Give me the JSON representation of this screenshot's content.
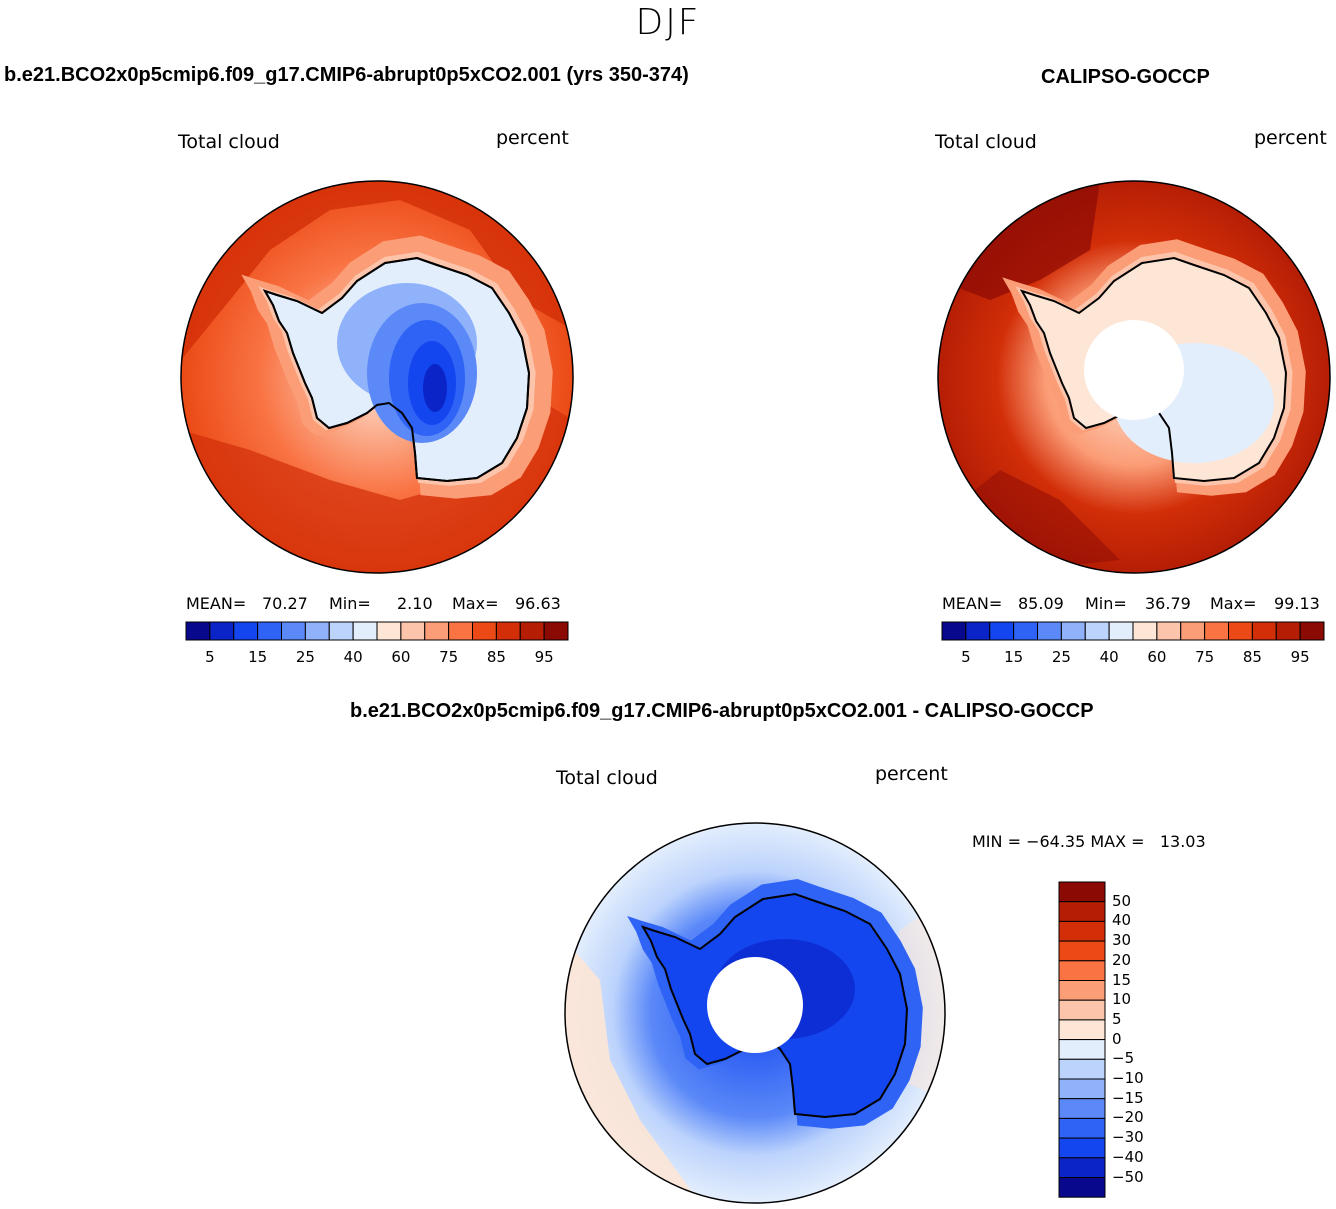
{
  "figure": {
    "season": "DJF"
  },
  "panels": [
    {
      "id": "model",
      "title": "b.e21.BCO2x0p5cmip6.f09_g17.CMIP6-abrupt0p5xCO2.001 (yrs 350-374)",
      "variable": "Total cloud",
      "units": "percent",
      "stats": {
        "mean_label": "MEAN=",
        "mean": "70.27",
        "min_label": "Min=",
        "min": "2.10",
        "max_label": "Max=",
        "max": "96.63"
      },
      "colorbar_ticks": [
        "5",
        "15",
        "25",
        "40",
        "60",
        "75",
        "85",
        "95"
      ]
    },
    {
      "id": "obs",
      "title": "CALIPSO-GOCCP",
      "variable": "Total cloud",
      "units": "percent",
      "stats": {
        "mean_label": "MEAN=",
        "mean": "85.09",
        "min_label": "Min=",
        "min": "36.79",
        "max_label": "Max=",
        "max": "99.13"
      },
      "colorbar_ticks": [
        "5",
        "15",
        "25",
        "40",
        "60",
        "75",
        "85",
        "95"
      ]
    },
    {
      "id": "diff",
      "title": "b.e21.BCO2x0p5cmip6.f09_g17.CMIP6-abrupt0p5xCO2.001 - CALIPSO-GOCCP",
      "variable": "Total cloud",
      "units": "percent",
      "stats_text": "MIN = −64.35 MAX =   13.03",
      "colorbar_ticks": [
        "50",
        "40",
        "30",
        "20",
        "15",
        "10",
        "5",
        "0",
        "−5",
        "−10",
        "−15",
        "−20",
        "−30",
        "−40",
        "−50"
      ]
    }
  ],
  "colors": {
    "abs_scale": [
      "#08088c",
      "#0a24c8",
      "#1446f0",
      "#2f63f5",
      "#5b89f8",
      "#8fb2fb",
      "#bcd3fc",
      "#e3eefd",
      "#fde6d6",
      "#fcc5ab",
      "#fb9d77",
      "#f97343",
      "#eb4a16",
      "#d22e08",
      "#b51e05",
      "#8c0a04"
    ],
    "diff_scale": [
      "#8c0a04",
      "#b51e05",
      "#d22e08",
      "#eb4a16",
      "#f97343",
      "#fb9d77",
      "#fcc5ab",
      "#fde6d6",
      "#e3eefd",
      "#bcd3fc",
      "#8fb2fb",
      "#5b89f8",
      "#2f63f5",
      "#1446f0",
      "#0a24c8",
      "#08088c"
    ]
  }
}
